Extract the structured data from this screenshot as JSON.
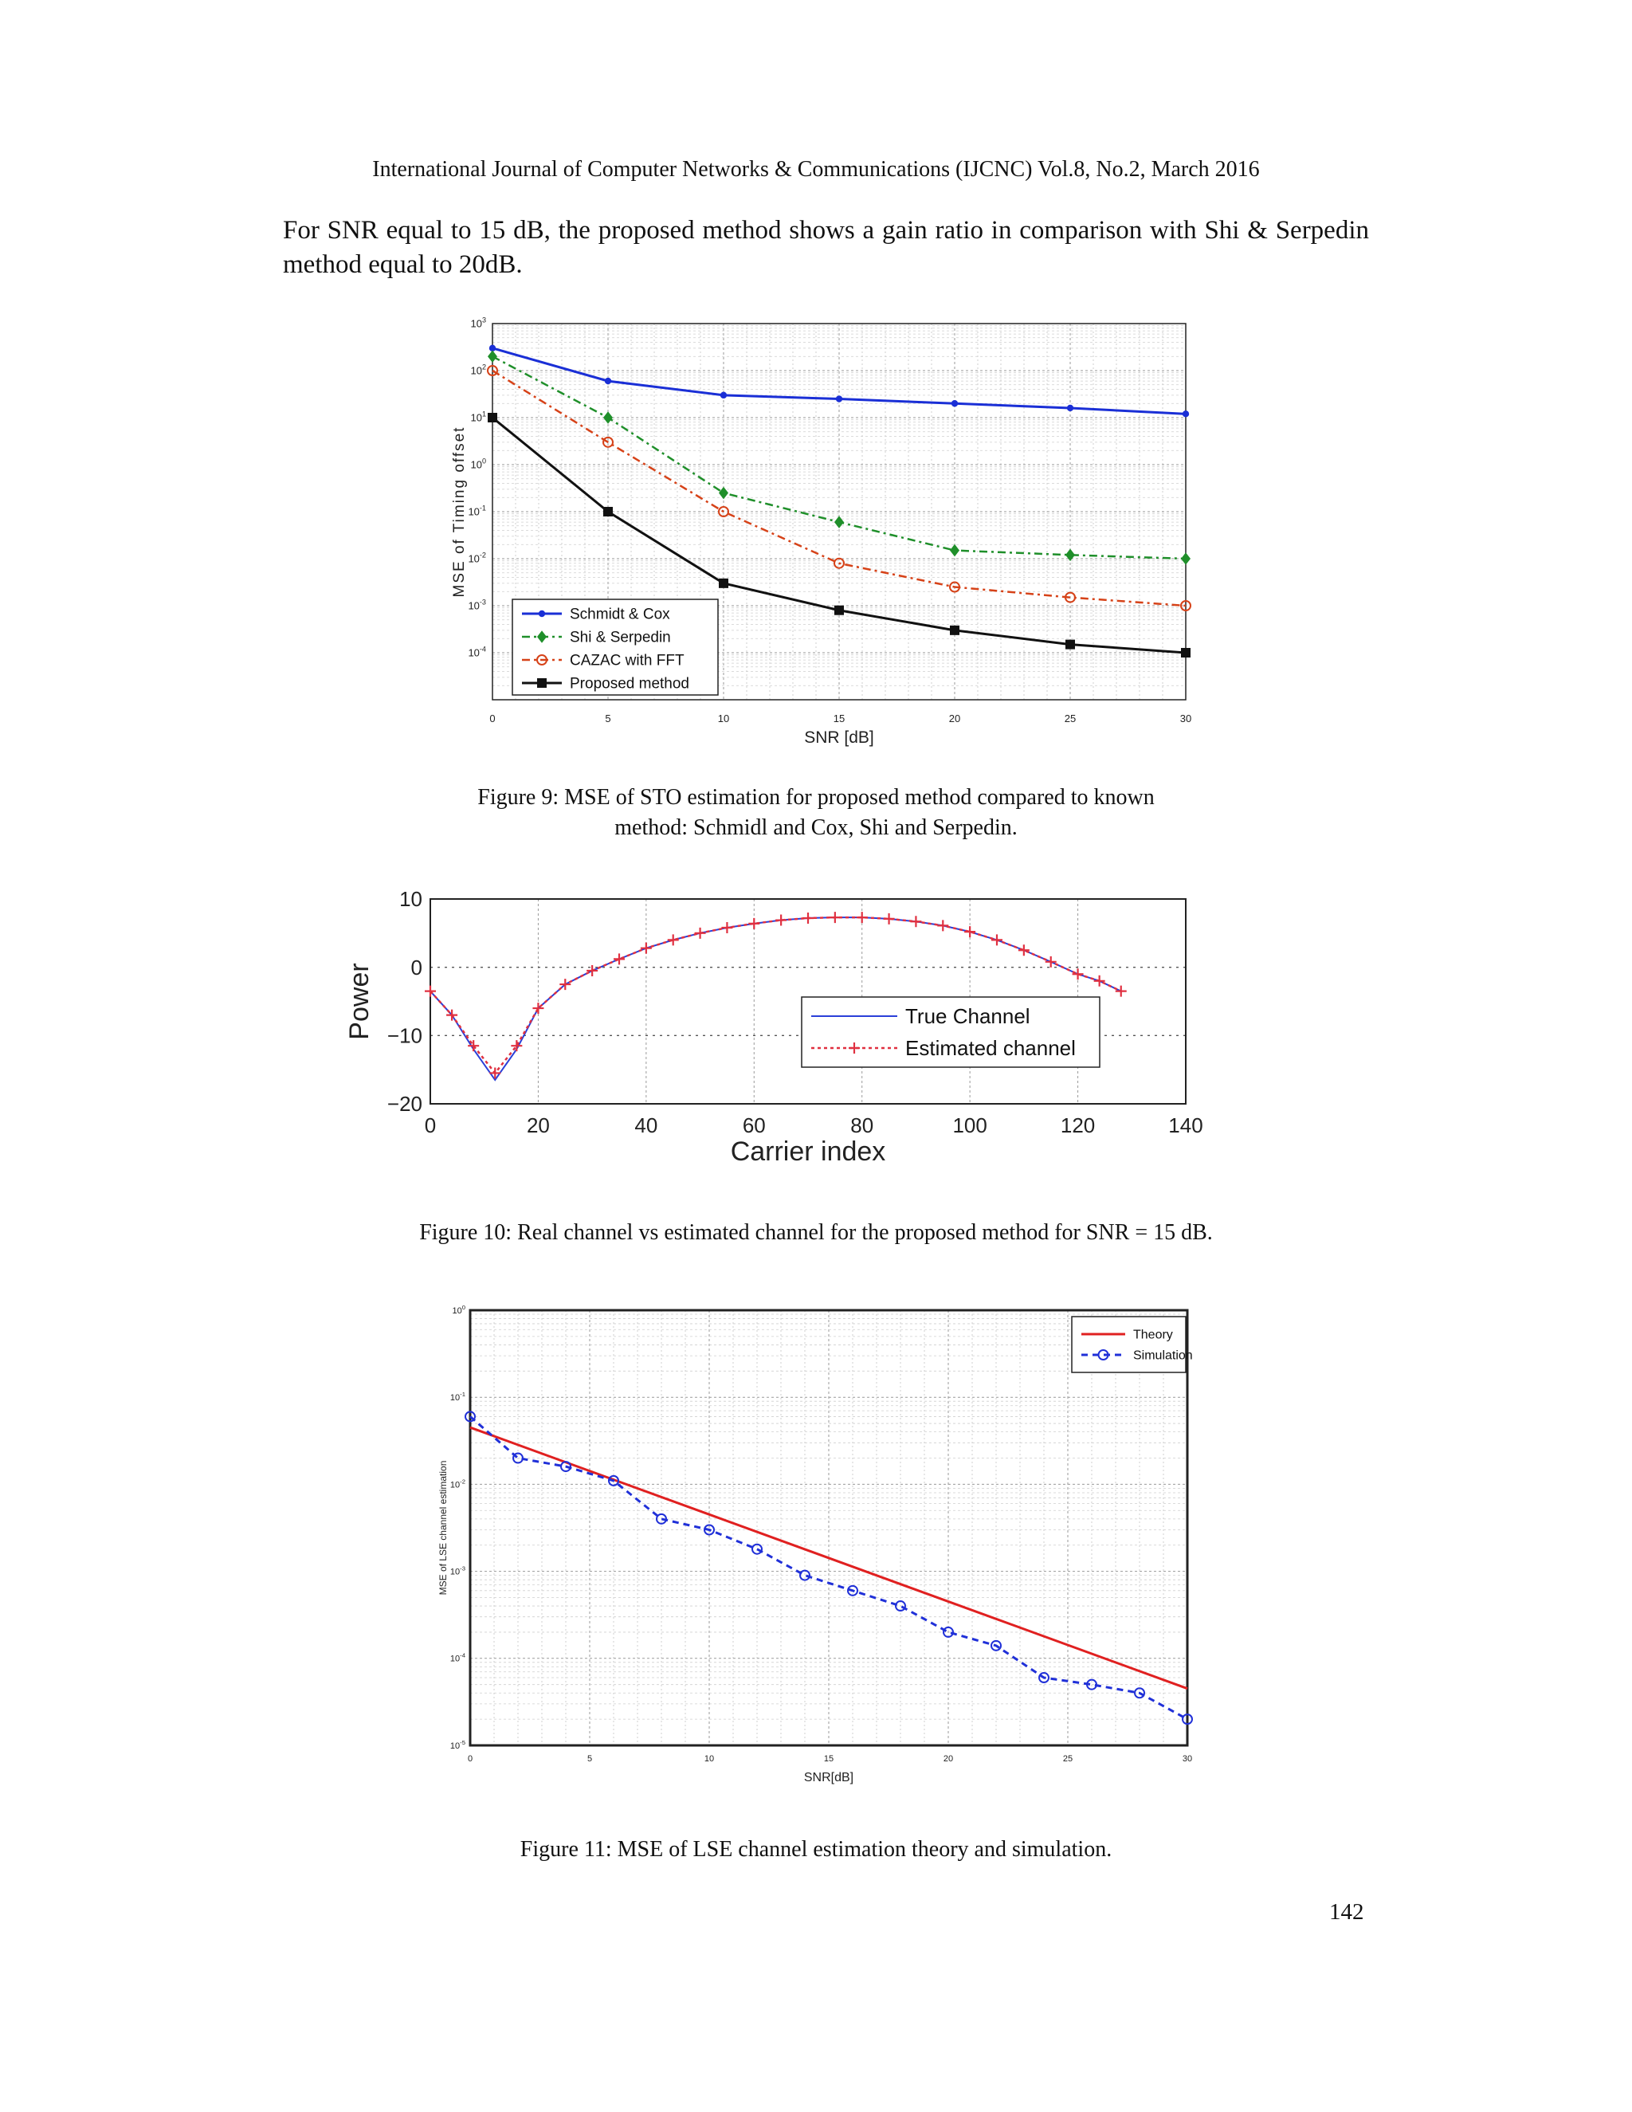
{
  "header": "International Journal of Computer Networks & Communications (IJCNC) Vol.8, No.2, March 2016",
  "paragraph": "For SNR equal to 15 dB, the proposed method shows a gain ratio in comparison with Shi & Serpedin method equal to 20dB.",
  "figures": [
    {
      "caption_line1": "Figure 9:   MSE of STO estimation for proposed method compared to known",
      "caption_line2": "method: Schmidl and Cox, Shi and Serpedin."
    },
    {
      "caption_line1": "Figure 10: Real channel vs estimated channel for the proposed method for SNR = 15 dB."
    },
    {
      "caption_line1": "Figure 11: MSE of LSE channel estimation theory and simulation."
    }
  ],
  "page_number": "142",
  "chart_data": [
    {
      "type": "line",
      "xlabel": "SNR [dB]",
      "ylabel": "MSE of Timing offset",
      "x": [
        0,
        5,
        10,
        15,
        20,
        25,
        30
      ],
      "xlim": [
        0,
        30
      ],
      "ylim": [
        1e-05,
        1000
      ],
      "yscale": "log",
      "x_ticks": [
        "0",
        "5",
        "10",
        "15",
        "20",
        "25",
        "30"
      ],
      "y_ticks": [
        "10^3",
        "10^2",
        "10^1",
        "10^0",
        "10^-1",
        "10^-2",
        "10^-3",
        "10^-4"
      ],
      "grid": true,
      "legend_position": "bottom-left",
      "series": [
        {
          "name": "Schmidt & Cox",
          "color": "#1a2fd6",
          "marker": "dot",
          "values": [
            300,
            60,
            30,
            25,
            20,
            16,
            12
          ]
        },
        {
          "name": "Shi & Serpedin",
          "color": "#1f8f2a",
          "marker": "diamond",
          "values": [
            200,
            10,
            0.25,
            0.06,
            0.015,
            0.012,
            0.01
          ]
        },
        {
          "name": "CAZAC with FFT",
          "color": "#d64218",
          "marker": "circle",
          "values": [
            100,
            3,
            0.1,
            0.008,
            0.0025,
            0.0015,
            0.001
          ]
        },
        {
          "name": "Proposed method",
          "color": "#111111",
          "marker": "square",
          "values": [
            10,
            0.1,
            0.003,
            0.0008,
            0.0003,
            0.00015,
            0.0001
          ]
        }
      ]
    },
    {
      "type": "line",
      "xlabel": "Carrier index",
      "ylabel": "Power",
      "xlim": [
        0,
        140
      ],
      "ylim": [
        -20,
        10
      ],
      "x_ticks": [
        "0",
        "20",
        "40",
        "60",
        "80",
        "100",
        "120",
        "140"
      ],
      "y_ticks": [
        "10",
        "0",
        "−10",
        "−20"
      ],
      "grid": true,
      "legend_position": "center-right",
      "series": [
        {
          "name": "True Channel",
          "color": "#2a3fd8",
          "x": [
            0,
            4,
            8,
            12,
            16,
            20,
            25,
            30,
            35,
            40,
            45,
            50,
            55,
            60,
            65,
            70,
            75,
            80,
            85,
            90,
            95,
            100,
            105,
            110,
            115,
            120,
            124,
            128
          ],
          "values": [
            -3.5,
            -7,
            -12,
            -16.5,
            -12,
            -6,
            -2.5,
            -0.5,
            1.2,
            2.8,
            4,
            5,
            5.8,
            6.4,
            6.9,
            7.2,
            7.3,
            7.3,
            7.1,
            6.7,
            6.1,
            5.2,
            4,
            2.5,
            0.8,
            -1,
            -2,
            -3.5
          ]
        },
        {
          "name": "Estimated channel",
          "color": "#e03040",
          "marker": "plus",
          "x": [
            0,
            4,
            8,
            12,
            16,
            20,
            25,
            30,
            35,
            40,
            45,
            50,
            55,
            60,
            65,
            70,
            75,
            80,
            85,
            90,
            95,
            100,
            105,
            110,
            115,
            120,
            124,
            128
          ],
          "values": [
            -3.5,
            -7,
            -11.5,
            -15.5,
            -11.5,
            -6,
            -2.5,
            -0.5,
            1.2,
            2.8,
            4,
            5,
            5.8,
            6.4,
            6.9,
            7.2,
            7.3,
            7.3,
            7.1,
            6.7,
            6.1,
            5.2,
            4,
            2.5,
            0.8,
            -1,
            -2,
            -3.5
          ]
        }
      ]
    },
    {
      "type": "line",
      "xlabel": "SNR[dB]",
      "ylabel": "MSE of LSE channel estimation",
      "xlim": [
        0,
        30
      ],
      "ylim": [
        1e-05,
        1
      ],
      "yscale": "log",
      "x_ticks": [
        "0",
        "5",
        "10",
        "15",
        "20",
        "25",
        "30"
      ],
      "y_ticks": [
        "10^0",
        "10^-1",
        "10^-2",
        "10^-3",
        "10^-4",
        "10^-5"
      ],
      "grid": true,
      "legend_position": "top-right",
      "series": [
        {
          "name": "Theory",
          "color": "#e02020",
          "x": [
            0,
            30
          ],
          "values": [
            0.045,
            4.5e-05
          ]
        },
        {
          "name": "Simulation",
          "color": "#2030d8",
          "marker": "circle",
          "x": [
            0,
            2,
            4,
            6,
            8,
            10,
            12,
            14,
            16,
            18,
            20,
            22,
            24,
            26,
            28,
            30
          ],
          "values": [
            0.06,
            0.02,
            0.016,
            0.011,
            0.004,
            0.003,
            0.0018,
            0.0009,
            0.0006,
            0.0004,
            0.0002,
            0.00014,
            6e-05,
            5e-05,
            4e-05,
            2e-05
          ]
        }
      ]
    }
  ]
}
